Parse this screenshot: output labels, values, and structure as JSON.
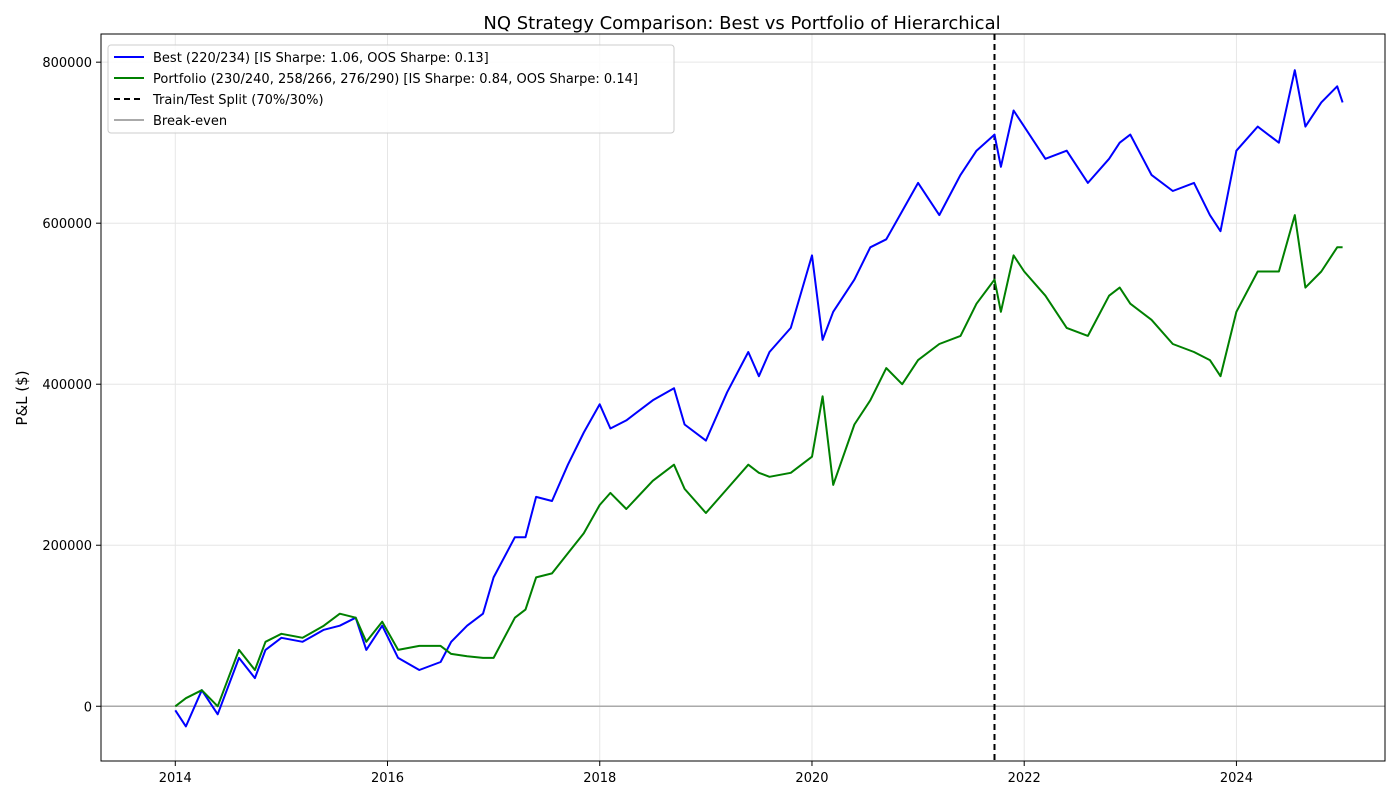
{
  "chart_data": {
    "type": "line",
    "title": "NQ Strategy Comparison: Best vs Portfolio of Hierarchical",
    "xlabel": "",
    "ylabel": "P&L ($)",
    "xlim": [
      2013.3,
      2025.4
    ],
    "ylim": [
      -68000,
      835000
    ],
    "x_ticks": [
      2014,
      2016,
      2018,
      2020,
      2022,
      2024
    ],
    "y_ticks": [
      0,
      200000,
      400000,
      600000,
      800000
    ],
    "grid": true,
    "legend_position": "upper-left",
    "split_x": 2021.72,
    "breakeven_y": 0,
    "series": [
      {
        "name": "Best (220/234) [IS Sharpe: 1.06, OOS Sharpe: 0.13]",
        "color": "#0000ff",
        "x": [
          2014.0,
          2014.1,
          2014.25,
          2014.4,
          2014.6,
          2014.75,
          2014.85,
          2015.0,
          2015.2,
          2015.4,
          2015.55,
          2015.7,
          2015.8,
          2015.95,
          2016.1,
          2016.3,
          2016.5,
          2016.6,
          2016.75,
          2016.9,
          2017.0,
          2017.2,
          2017.3,
          2017.4,
          2017.55,
          2017.7,
          2017.85,
          2018.0,
          2018.1,
          2018.25,
          2018.5,
          2018.7,
          2018.8,
          2019.0,
          2019.2,
          2019.4,
          2019.5,
          2019.6,
          2019.8,
          2020.0,
          2020.1,
          2020.2,
          2020.4,
          2020.55,
          2020.7,
          2020.85,
          2021.0,
          2021.2,
          2021.4,
          2021.55,
          2021.72,
          2021.78,
          2021.9,
          2022.0,
          2022.2,
          2022.4,
          2022.6,
          2022.8,
          2022.9,
          2023.0,
          2023.2,
          2023.4,
          2023.6,
          2023.75,
          2023.85,
          2024.0,
          2024.2,
          2024.4,
          2024.55,
          2024.65,
          2024.8,
          2024.95,
          2025.0
        ],
        "values": [
          -5000,
          -25000,
          20000,
          -10000,
          60000,
          35000,
          70000,
          85000,
          80000,
          95000,
          100000,
          110000,
          70000,
          100000,
          60000,
          45000,
          55000,
          80000,
          100000,
          115000,
          160000,
          210000,
          210000,
          260000,
          255000,
          300000,
          340000,
          375000,
          345000,
          355000,
          380000,
          395000,
          350000,
          330000,
          390000,
          440000,
          410000,
          440000,
          470000,
          560000,
          455000,
          490000,
          530000,
          570000,
          580000,
          615000,
          650000,
          610000,
          660000,
          690000,
          710000,
          670000,
          740000,
          720000,
          680000,
          690000,
          650000,
          680000,
          700000,
          710000,
          660000,
          640000,
          650000,
          610000,
          590000,
          690000,
          720000,
          700000,
          790000,
          720000,
          750000,
          770000,
          750000
        ]
      },
      {
        "name": "Portfolio (230/240, 258/266, 276/290) [IS Sharpe: 0.84, OOS Sharpe: 0.14]",
        "color": "#008000",
        "x": [
          2014.0,
          2014.1,
          2014.25,
          2014.4,
          2014.6,
          2014.75,
          2014.85,
          2015.0,
          2015.2,
          2015.4,
          2015.55,
          2015.7,
          2015.8,
          2015.95,
          2016.1,
          2016.3,
          2016.5,
          2016.6,
          2016.75,
          2016.9,
          2017.0,
          2017.2,
          2017.3,
          2017.4,
          2017.55,
          2017.7,
          2017.85,
          2018.0,
          2018.1,
          2018.25,
          2018.5,
          2018.7,
          2018.8,
          2019.0,
          2019.2,
          2019.4,
          2019.5,
          2019.6,
          2019.8,
          2020.0,
          2020.1,
          2020.2,
          2020.4,
          2020.55,
          2020.7,
          2020.85,
          2021.0,
          2021.2,
          2021.4,
          2021.55,
          2021.72,
          2021.78,
          2021.9,
          2022.0,
          2022.2,
          2022.4,
          2022.6,
          2022.8,
          2022.9,
          2023.0,
          2023.2,
          2023.4,
          2023.6,
          2023.75,
          2023.85,
          2024.0,
          2024.2,
          2024.4,
          2024.55,
          2024.65,
          2024.8,
          2024.95,
          2025.0
        ],
        "values": [
          0,
          10000,
          20000,
          0,
          70000,
          45000,
          80000,
          90000,
          85000,
          100000,
          115000,
          110000,
          80000,
          105000,
          70000,
          75000,
          75000,
          65000,
          62000,
          60000,
          60000,
          110000,
          120000,
          160000,
          165000,
          190000,
          215000,
          250000,
          265000,
          245000,
          280000,
          300000,
          270000,
          240000,
          270000,
          300000,
          290000,
          285000,
          290000,
          310000,
          385000,
          275000,
          350000,
          380000,
          420000,
          400000,
          430000,
          450000,
          460000,
          500000,
          530000,
          490000,
          560000,
          540000,
          510000,
          470000,
          460000,
          510000,
          520000,
          500000,
          480000,
          450000,
          440000,
          430000,
          410000,
          490000,
          540000,
          540000,
          610000,
          520000,
          540000,
          570000,
          570000
        ]
      }
    ],
    "legend": [
      "Best (220/234) [IS Sharpe: 1.06, OOS Sharpe: 0.13]",
      "Portfolio (230/240, 258/266, 276/290) [IS Sharpe: 0.84, OOS Sharpe: 0.14]",
      "Train/Test Split (70%/30%)",
      "Break-even"
    ]
  }
}
